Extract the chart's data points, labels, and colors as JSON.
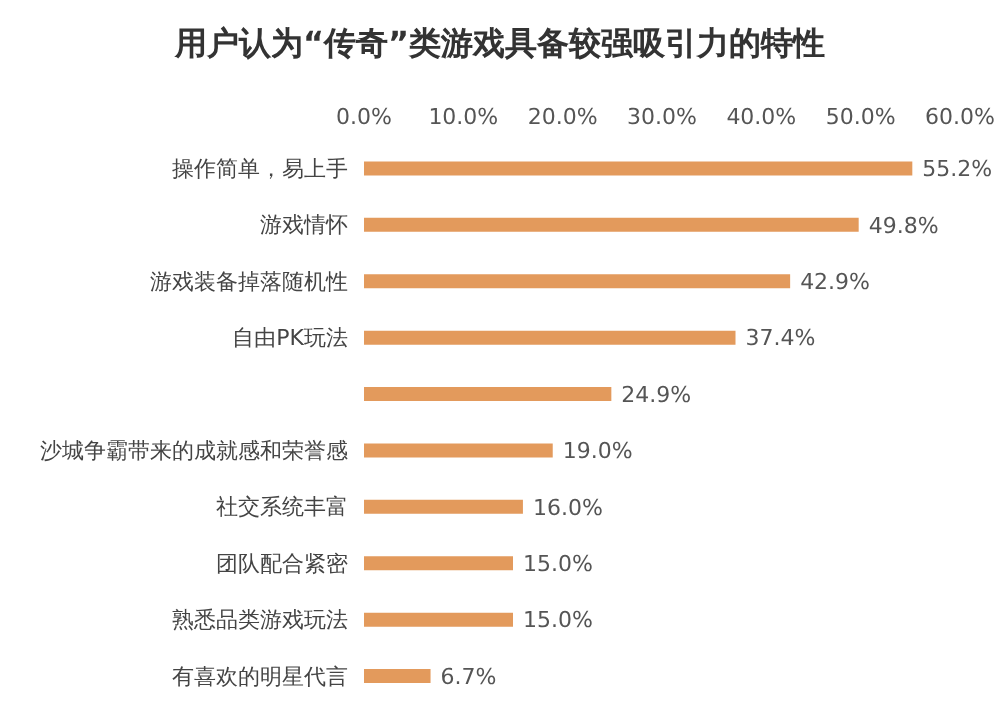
{
  "chart_data": {
    "type": "bar",
    "orientation": "horizontal",
    "title": "用户认为“传奇”类游戏具备较强吸引力的特性",
    "categories": [
      "操作简单，易上手",
      "游戏情怀",
      "游戏装备掉落随机性",
      "自由PK玩法",
      null,
      "沙城争霸带来的成就感和荣誉感",
      "社交系统丰富",
      "团队配合紧密",
      "熟悉品类游戏玩法",
      "有喜欢的明星代言"
    ],
    "values": [
      55.2,
      49.8,
      42.9,
      37.4,
      24.9,
      19.0,
      16.0,
      15.0,
      15.0,
      6.7
    ],
    "value_labels": [
      "55.2%",
      "49.8%",
      "42.9%",
      "37.4%",
      "24.9%",
      "19.0%",
      "16.0%",
      "15.0%",
      "15.0%",
      "6.7%"
    ],
    "color": "#e39a5c",
    "xlim": [
      0,
      60
    ],
    "xticks": [
      {
        "value": 0,
        "label": "0.0%"
      },
      {
        "value": 10,
        "label": "10.0%"
      },
      {
        "value": 20,
        "label": "20.0%"
      },
      {
        "value": 30,
        "label": "30.0%"
      },
      {
        "value": 40,
        "label": "40.0%"
      },
      {
        "value": 50,
        "label": "50.0%"
      },
      {
        "value": 60,
        "label": "60.0%"
      }
    ],
    "grid": false
  }
}
